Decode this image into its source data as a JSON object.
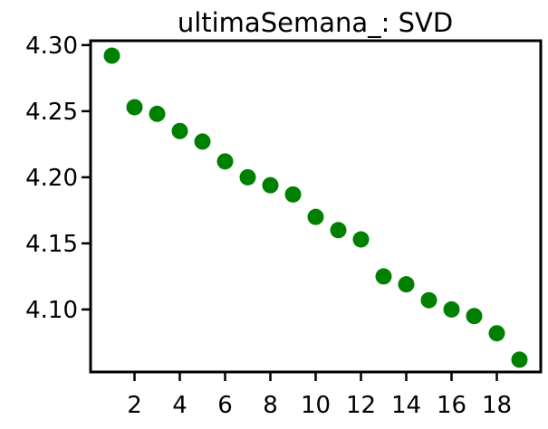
{
  "chart_data": {
    "type": "scatter",
    "title": "ultimaSemana_: SVD",
    "xlabel": "",
    "ylabel": "",
    "x": [
      1,
      2,
      3,
      4,
      5,
      6,
      7,
      8,
      9,
      10,
      11,
      12,
      13,
      14,
      15,
      16,
      17,
      18,
      19
    ],
    "y": [
      4.292,
      4.253,
      4.248,
      4.235,
      4.227,
      4.212,
      4.2,
      4.194,
      4.187,
      4.17,
      4.16,
      4.153,
      4.125,
      4.119,
      4.107,
      4.1,
      4.095,
      4.082,
      4.062
    ],
    "xlim": [
      0.06,
      19.94
    ],
    "ylim": [
      4.0527,
      4.3033
    ],
    "x_ticks": [
      2,
      4,
      6,
      8,
      10,
      12,
      14,
      16,
      18
    ],
    "x_tick_labels": [
      "2",
      "4",
      "6",
      "8",
      "10",
      "12",
      "14",
      "16",
      "18"
    ],
    "y_ticks": [
      4.1,
      4.15,
      4.2,
      4.25,
      4.3
    ],
    "y_tick_labels": [
      "4.10",
      "4.15",
      "4.20",
      "4.25",
      "4.30"
    ],
    "marker_color": "#008000",
    "grid": false,
    "legend": "none"
  }
}
